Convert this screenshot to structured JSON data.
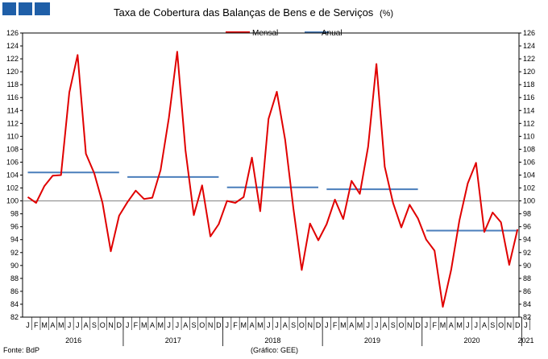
{
  "chart_data": {
    "type": "line",
    "title": "Taxa de Cobertura das Balanças de Bens e de Serviços",
    "title_unit": "(%)",
    "source": "Fonte: BdP",
    "credit": "(Gráfico: GEE)",
    "ylim": [
      82,
      126
    ],
    "ystep": 2,
    "reference_line": 100,
    "grid": false,
    "legend_position": "top-center",
    "colors": {
      "mensal": "#e00000",
      "anual": "#4a7ebb",
      "logo": "#1f5fa8"
    },
    "month_labels": [
      "J",
      "F",
      "M",
      "A",
      "M",
      "J",
      "J",
      "A",
      "S",
      "O",
      "N",
      "D"
    ],
    "years": [
      "2016",
      "2017",
      "2018",
      "2019",
      "2020",
      "2021"
    ],
    "series": [
      {
        "name": "Mensal",
        "values": [
          100.6,
          99.7,
          102.3,
          103.9,
          104.0,
          116.8,
          122.6,
          107.3,
          104.3,
          99.7,
          92.2,
          97.7,
          99.8,
          101.6,
          100.3,
          100.5,
          104.8,
          112.9,
          123.1,
          107.8,
          97.8,
          102.4,
          94.5,
          96.4,
          100.0,
          99.7,
          100.6,
          106.7,
          98.4,
          112.7,
          116.9,
          109.5,
          98.8,
          89.3,
          96.5,
          93.9,
          96.4,
          100.2,
          97.2,
          103.1,
          101.1,
          108.4,
          121.2,
          105.3,
          99.7,
          95.9,
          99.4,
          97.3,
          94.0,
          92.3,
          83.6,
          89.3,
          97.0,
          102.7,
          105.9,
          95.2,
          98.2,
          96.7,
          90.1,
          95.6
        ]
      },
      {
        "name": "Anual",
        "values": [
          104.4,
          103.7,
          102.1,
          101.8,
          95.4
        ]
      }
    ]
  }
}
